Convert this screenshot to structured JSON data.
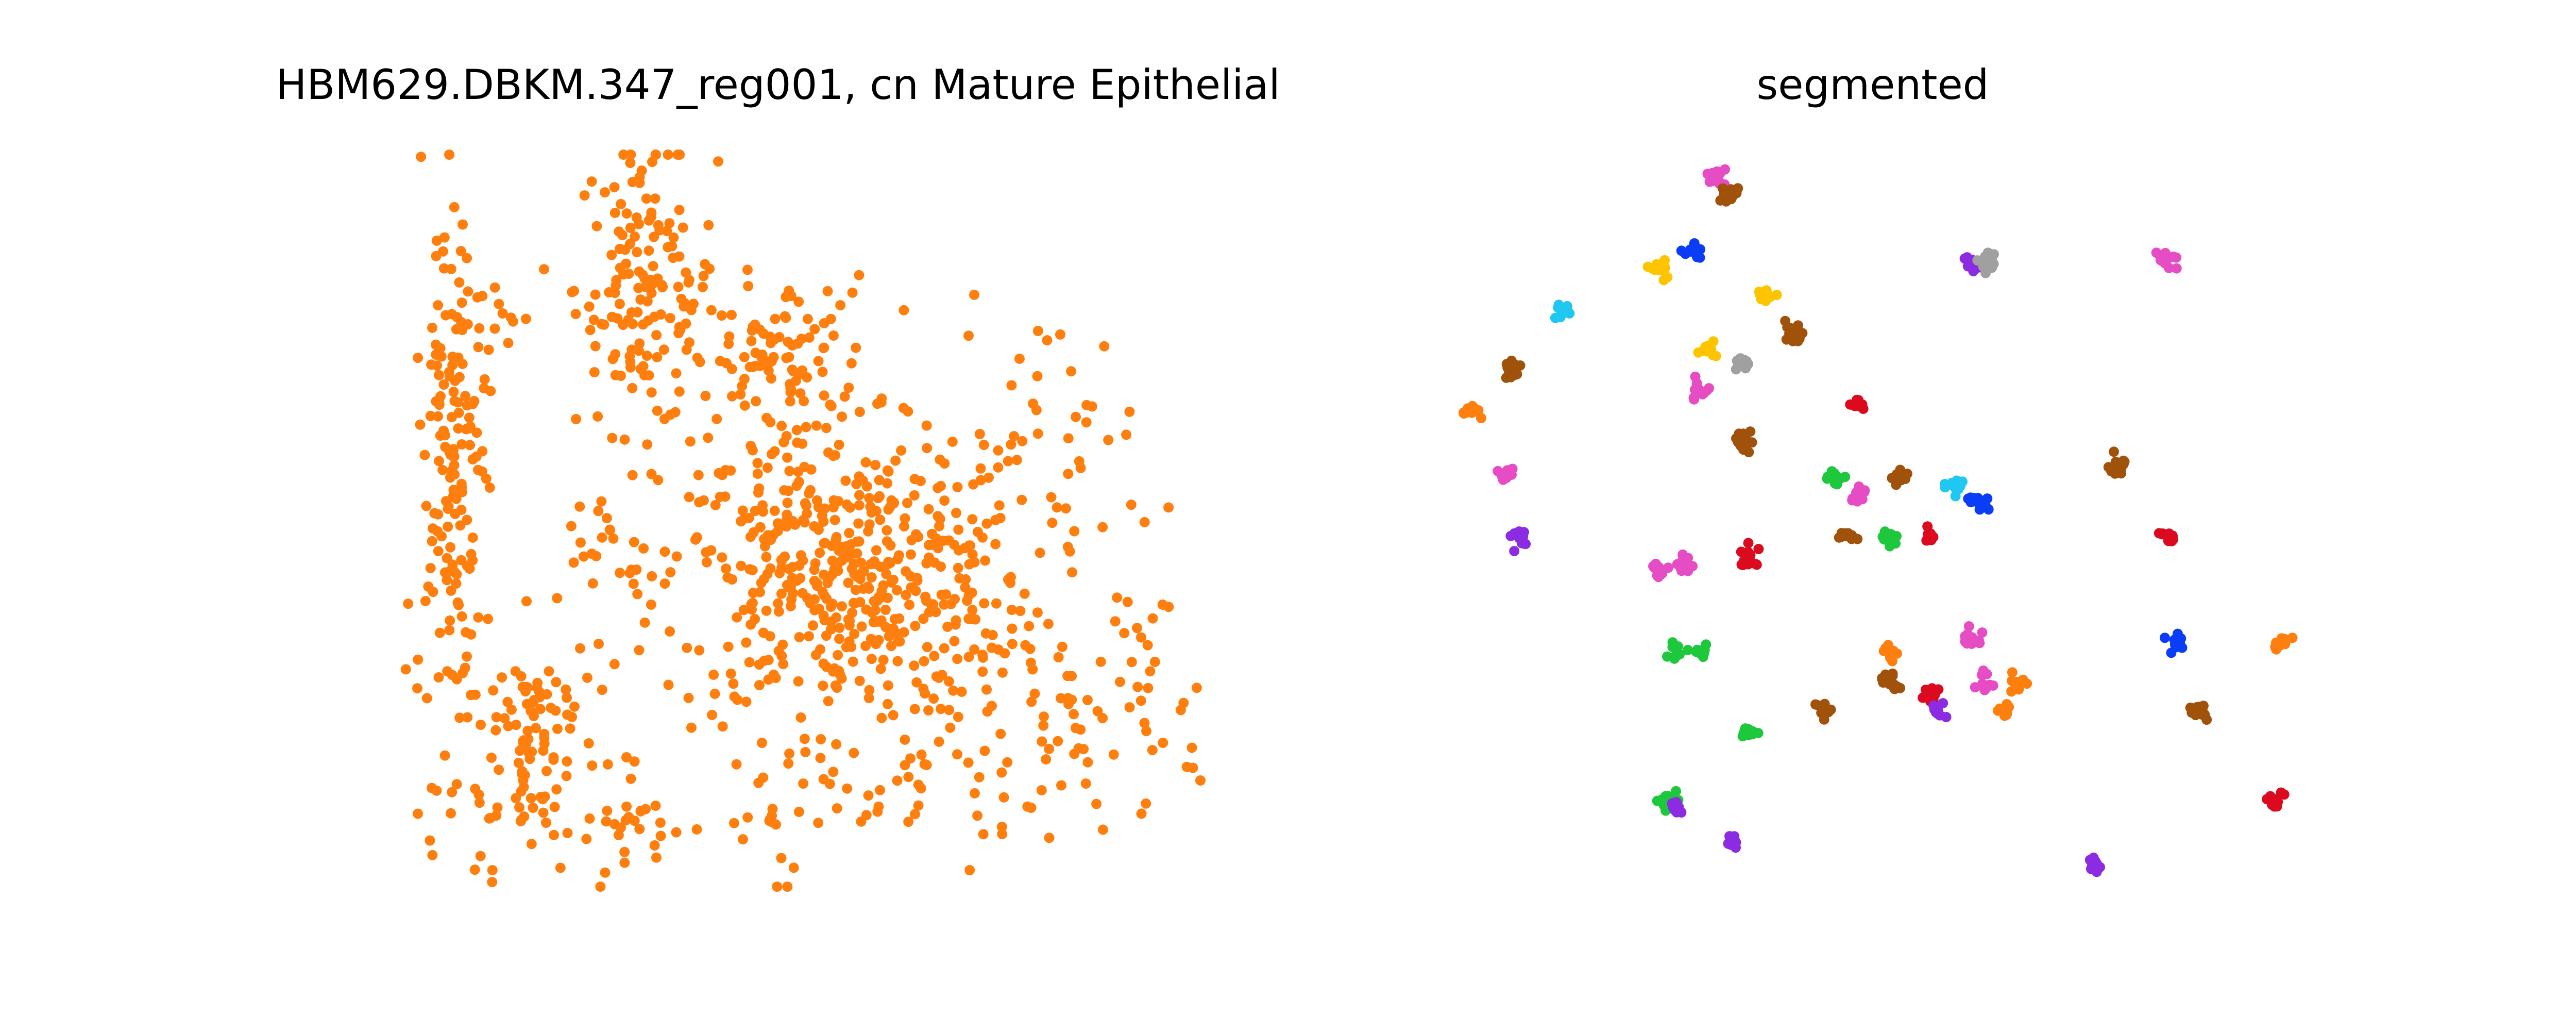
{
  "left_title": "HBM629.DBKM.347_reg001, cn Mature Epithelial",
  "right_title": "segmented",
  "colors": {
    "orange": "#ff7f0e",
    "brown": "#a0520a",
    "magenta": "#e64cc4",
    "purple": "#8b2be2",
    "blue": "#0a3df5",
    "yellow": "#ffc400",
    "cyan": "#1ec8f0",
    "gray": "#a0a0a0",
    "red": "#dc0a1e",
    "green": "#1ec83c"
  },
  "chart_data": [
    {
      "type": "scatter",
      "title": "HBM629.DBKM.347_reg001, cn Mature Epithelial",
      "axes": "off",
      "grid": false,
      "legend": "none",
      "color": "orange",
      "xlim": [
        0,
        100
      ],
      "ylim": [
        0,
        100
      ],
      "regions": [
        {
          "cx": 11,
          "cy": 55,
          "rx": 3,
          "ry": 28,
          "n": 170
        },
        {
          "cx": 20,
          "cy": 20,
          "rx": 6,
          "ry": 12,
          "n": 110
        },
        {
          "cx": 34,
          "cy": 82,
          "rx": 6,
          "ry": 14,
          "n": 150
        },
        {
          "cx": 58,
          "cy": 42,
          "rx": 16,
          "ry": 14,
          "n": 520
        },
        {
          "cx": 50,
          "cy": 72,
          "rx": 8,
          "ry": 8,
          "n": 110
        },
        {
          "cx": 82,
          "cy": 62,
          "rx": 8,
          "ry": 12,
          "n": 35
        },
        {
          "cx": 84,
          "cy": 22,
          "rx": 12,
          "ry": 10,
          "n": 70
        },
        {
          "cx": 30,
          "cy": 46,
          "rx": 4,
          "ry": 4,
          "n": 15
        },
        {
          "cx": 33,
          "cy": 8,
          "rx": 5,
          "ry": 4,
          "n": 25
        },
        {
          "cx": 50,
          "cy": 12,
          "rx": 6,
          "ry": 8,
          "n": 30
        },
        {
          "cx": 68,
          "cy": 14,
          "rx": 6,
          "ry": 6,
          "n": 25
        },
        {
          "cx": 16,
          "cy": 77,
          "rx": 3,
          "ry": 5,
          "n": 12
        },
        {
          "cx": 93,
          "cy": 30,
          "rx": 4,
          "ry": 12,
          "n": 20
        }
      ]
    },
    {
      "type": "scatter",
      "title": "segmented",
      "axes": "off",
      "grid": false,
      "legend": "none",
      "xlim": [
        0,
        100
      ],
      "ylim": [
        0,
        100
      ],
      "clusters": [
        {
          "x": 31,
          "y": 97,
          "color": "magenta"
        },
        {
          "x": 32,
          "y": 95,
          "color": "brown"
        },
        {
          "x": 28,
          "y": 87,
          "color": "blue"
        },
        {
          "x": 24,
          "y": 85,
          "color": "yellow"
        },
        {
          "x": 62,
          "y": 85,
          "color": "purple"
        },
        {
          "x": 64,
          "y": 86,
          "color": "gray"
        },
        {
          "x": 86,
          "y": 86,
          "color": "magenta"
        },
        {
          "x": 37,
          "y": 81,
          "color": "yellow"
        },
        {
          "x": 12,
          "y": 79,
          "color": "cyan"
        },
        {
          "x": 40,
          "y": 76,
          "color": "brown"
        },
        {
          "x": 30,
          "y": 74,
          "color": "yellow"
        },
        {
          "x": 34,
          "y": 72,
          "color": "gray"
        },
        {
          "x": 6,
          "y": 71,
          "color": "brown"
        },
        {
          "x": 29,
          "y": 68,
          "color": "magenta"
        },
        {
          "x": 48,
          "y": 66,
          "color": "red"
        },
        {
          "x": 1,
          "y": 65,
          "color": "orange"
        },
        {
          "x": 34,
          "y": 61,
          "color": "brown"
        },
        {
          "x": 80,
          "y": 58,
          "color": "brown"
        },
        {
          "x": 5,
          "y": 57,
          "color": "magenta"
        },
        {
          "x": 45,
          "y": 56,
          "color": "green"
        },
        {
          "x": 53,
          "y": 56,
          "color": "brown"
        },
        {
          "x": 48,
          "y": 54,
          "color": "magenta"
        },
        {
          "x": 60,
          "y": 55,
          "color": "cyan"
        },
        {
          "x": 63,
          "y": 53,
          "color": "blue"
        },
        {
          "x": 7,
          "y": 48,
          "color": "purple"
        },
        {
          "x": 52,
          "y": 48,
          "color": "green"
        },
        {
          "x": 47,
          "y": 48,
          "color": "brown"
        },
        {
          "x": 57,
          "y": 48,
          "color": "red"
        },
        {
          "x": 86,
          "y": 48,
          "color": "red"
        },
        {
          "x": 35,
          "y": 45,
          "color": "red"
        },
        {
          "x": 24,
          "y": 43,
          "color": "magenta"
        },
        {
          "x": 27,
          "y": 44,
          "color": "magenta"
        },
        {
          "x": 62,
          "y": 34,
          "color": "magenta"
        },
        {
          "x": 87,
          "y": 33,
          "color": "blue"
        },
        {
          "x": 100,
          "y": 33,
          "color": "orange"
        },
        {
          "x": 29,
          "y": 32,
          "color": "green"
        },
        {
          "x": 26,
          "y": 32,
          "color": "green"
        },
        {
          "x": 52,
          "y": 32,
          "color": "orange"
        },
        {
          "x": 64,
          "y": 28,
          "color": "magenta"
        },
        {
          "x": 68,
          "y": 28,
          "color": "orange"
        },
        {
          "x": 52,
          "y": 28,
          "color": "brown"
        },
        {
          "x": 57,
          "y": 26,
          "color": "red"
        },
        {
          "x": 58,
          "y": 24,
          "color": "purple"
        },
        {
          "x": 44,
          "y": 24,
          "color": "brown"
        },
        {
          "x": 66,
          "y": 24,
          "color": "orange"
        },
        {
          "x": 90,
          "y": 24,
          "color": "brown"
        },
        {
          "x": 35,
          "y": 21,
          "color": "green"
        },
        {
          "x": 25,
          "y": 12,
          "color": "green"
        },
        {
          "x": 26,
          "y": 11,
          "color": "purple"
        },
        {
          "x": 99,
          "y": 12,
          "color": "red"
        },
        {
          "x": 33,
          "y": 6,
          "color": "purple"
        },
        {
          "x": 77,
          "y": 3,
          "color": "purple"
        }
      ]
    }
  ]
}
